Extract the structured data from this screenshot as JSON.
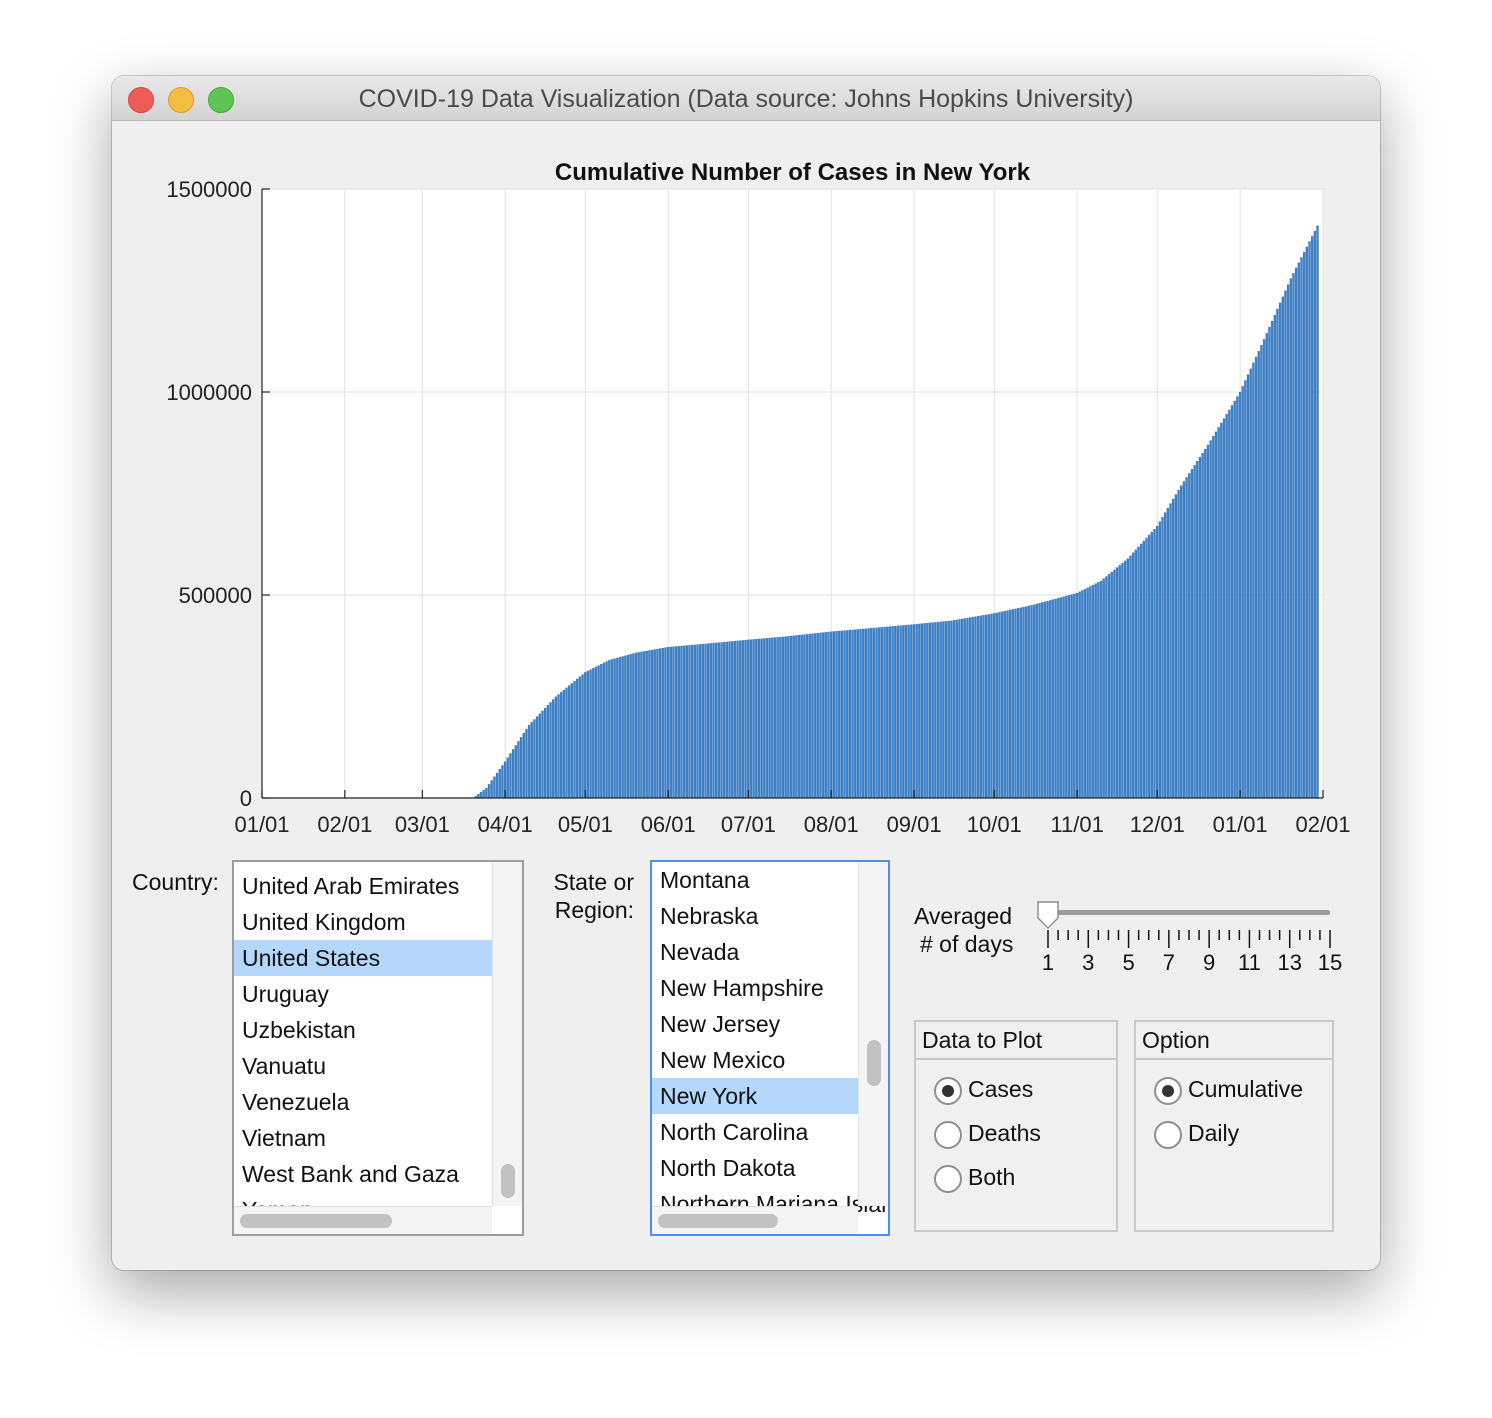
{
  "window": {
    "title": "COVID-19 Data Visualization (Data source: Johns Hopkins University)"
  },
  "chart_data": {
    "type": "bar",
    "title": "Cumulative Number of Cases in New York",
    "xlabel": "",
    "ylabel": "",
    "ylim": [
      0,
      1500000
    ],
    "yticks": [
      0,
      500000,
      1000000,
      1500000
    ],
    "ytick_labels": [
      "0",
      "500000",
      "1000000",
      "1500000"
    ],
    "xlim": [
      "2020-01-01",
      "2021-02-01"
    ],
    "xtick_labels": [
      "01/01",
      "02/01",
      "03/01",
      "04/01",
      "05/01",
      "06/01",
      "07/01",
      "08/01",
      "09/01",
      "10/01",
      "11/01",
      "12/01",
      "01/01",
      "02/01"
    ],
    "xtick_dates": [
      "2020-01-01",
      "2020-02-01",
      "2020-03-01",
      "2020-04-01",
      "2020-05-01",
      "2020-06-01",
      "2020-07-01",
      "2020-08-01",
      "2020-09-01",
      "2020-10-01",
      "2020-11-01",
      "2020-12-01",
      "2021-01-01",
      "2021-02-01"
    ],
    "grid": true,
    "color": "#3f7fc4",
    "series": [
      {
        "x": [
          "2020-03-20",
          "2020-03-25",
          "2020-04-01",
          "2020-04-10",
          "2020-04-20",
          "2020-05-01",
          "2020-05-10",
          "2020-05-20",
          "2020-06-01",
          "2020-06-15",
          "2020-07-01",
          "2020-07-15",
          "2020-08-01",
          "2020-08-15",
          "2020-09-01",
          "2020-09-15",
          "2020-10-01",
          "2020-10-15",
          "2020-11-01",
          "2020-11-10",
          "2020-11-20",
          "2020-12-01",
          "2020-12-10",
          "2020-12-20",
          "2021-01-01",
          "2021-01-10",
          "2021-01-20",
          "2021-01-30"
        ],
        "values": [
          0,
          25000,
          90000,
          180000,
          250000,
          310000,
          340000,
          358000,
          372000,
          380000,
          390000,
          398000,
          410000,
          418000,
          428000,
          437000,
          455000,
          475000,
          505000,
          535000,
          590000,
          670000,
          770000,
          870000,
          1000000,
          1130000,
          1280000,
          1410000
        ]
      }
    ]
  },
  "country": {
    "label": "Country:",
    "items": [
      "United Arab Emirates",
      "United Kingdom",
      "United States",
      "Uruguay",
      "Uzbekistan",
      "Vanuatu",
      "Venezuela",
      "Vietnam",
      "West Bank and Gaza",
      "Yemen"
    ],
    "selected": "United States"
  },
  "state": {
    "label_line1": "State or",
    "label_line2": "Region:",
    "items": [
      "Montana",
      "Nebraska",
      "Nevada",
      "New Hampshire",
      "New Jersey",
      "New Mexico",
      "New York",
      "North Carolina",
      "North Dakota",
      "Northern Mariana Islands"
    ],
    "selected": "New York"
  },
  "averaging": {
    "label_line1": "Averaged",
    "label_line2": "# of days",
    "value": 1,
    "min": 1,
    "max": 15,
    "tick_labels": [
      "1",
      "3",
      "5",
      "7",
      "9",
      "11",
      "13",
      "15"
    ]
  },
  "data_to_plot": {
    "title": "Data to Plot",
    "options": [
      "Cases",
      "Deaths",
      "Both"
    ],
    "selected": "Cases"
  },
  "option": {
    "title": "Option",
    "options": [
      "Cumulative",
      "Daily"
    ],
    "selected": "Cumulative"
  }
}
